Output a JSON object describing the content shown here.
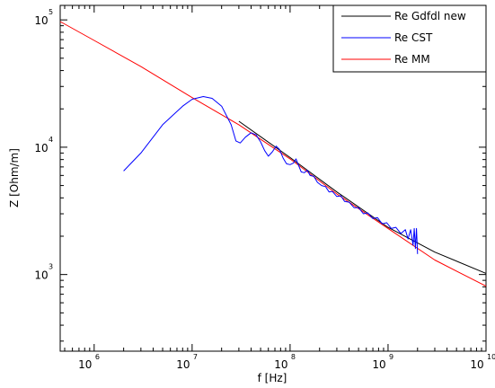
{
  "chart_data": {
    "type": "line",
    "xlabel": "f [Hz]",
    "ylabel": "Z [Ohm/m]",
    "x_scale": "log",
    "y_scale": "log",
    "xlim": [
      450000,
      10000000000
    ],
    "ylim": [
      250,
      130000
    ],
    "x_ticks": [
      {
        "value": 1000000,
        "base": "10",
        "exp": "6"
      },
      {
        "value": 10000000,
        "base": "10",
        "exp": "7"
      },
      {
        "value": 100000000,
        "base": "10",
        "exp": "8"
      },
      {
        "value": 1000000000,
        "base": "10",
        "exp": "9"
      },
      {
        "value": 10000000000,
        "base": "10",
        "exp": "10"
      }
    ],
    "y_ticks": [
      {
        "value": 1000,
        "base": "10",
        "exp": "3"
      },
      {
        "value": 10000,
        "base": "10",
        "exp": "4"
      },
      {
        "value": 100000,
        "base": "10",
        "exp": "5"
      }
    ],
    "grid": false,
    "legend_position": "top-right",
    "series": [
      {
        "name": "Re Gdfdl new",
        "color": "#000000",
        "points": [
          [
            30000000,
            16000
          ],
          [
            50000000,
            12100
          ],
          [
            100000000,
            8300
          ],
          [
            300000000,
            4450
          ],
          [
            1000000000,
            2350
          ],
          [
            3000000000,
            1500
          ],
          [
            10000000000,
            1020
          ]
        ]
      },
      {
        "name": "Re CST",
        "color": "#0000ff",
        "points": [
          [
            2000000,
            6500
          ],
          [
            3000000,
            9000
          ],
          [
            5000000,
            15000
          ],
          [
            8000000,
            21000
          ],
          [
            10000000,
            23800
          ],
          [
            13000000,
            25000
          ],
          [
            16000000,
            24200
          ],
          [
            20000000,
            21000
          ],
          [
            25000000,
            15000
          ],
          [
            28000000,
            11200
          ],
          [
            31000000,
            10800
          ],
          [
            35000000,
            12000
          ],
          [
            40000000,
            13000
          ],
          [
            45000000,
            12500
          ],
          [
            50000000,
            11000
          ],
          [
            55000000,
            9400
          ],
          [
            60000000,
            8500
          ],
          [
            66000000,
            9200
          ],
          [
            72000000,
            10200
          ],
          [
            78000000,
            9600
          ],
          [
            85000000,
            8200
          ],
          [
            92000000,
            7400
          ],
          [
            100000000,
            7300
          ],
          [
            108000000,
            7500
          ],
          [
            115000000,
            8100
          ],
          [
            122000000,
            7200
          ],
          [
            130000000,
            6400
          ],
          [
            140000000,
            6300
          ],
          [
            150000000,
            6600
          ],
          [
            160000000,
            6000
          ],
          [
            175000000,
            5900
          ],
          [
            190000000,
            5300
          ],
          [
            210000000,
            5000
          ],
          [
            230000000,
            4900
          ],
          [
            250000000,
            4450
          ],
          [
            270000000,
            4500
          ],
          [
            300000000,
            4100
          ],
          [
            330000000,
            4150
          ],
          [
            360000000,
            3750
          ],
          [
            400000000,
            3700
          ],
          [
            450000000,
            3350
          ],
          [
            500000000,
            3350
          ],
          [
            560000000,
            3000
          ],
          [
            620000000,
            3050
          ],
          [
            700000000,
            2750
          ],
          [
            780000000,
            2800
          ],
          [
            870000000,
            2500
          ],
          [
            970000000,
            2550
          ],
          [
            1080000000,
            2300
          ],
          [
            1200000000,
            2350
          ],
          [
            1350000000,
            2100
          ],
          [
            1500000000,
            2250
          ],
          [
            1600000000,
            1900
          ],
          [
            1700000000,
            2250
          ],
          [
            1800000000,
            1700
          ],
          [
            1850000000,
            2300
          ],
          [
            1900000000,
            1600
          ],
          [
            1950000000,
            2300
          ],
          [
            2000000000,
            1450
          ]
        ]
      },
      {
        "name": "Re MM",
        "color": "#ff0000",
        "points": [
          [
            450000,
            97000
          ],
          [
            1000000,
            69000
          ],
          [
            3000000,
            43000
          ],
          [
            10000000,
            24500
          ],
          [
            30000000,
            15000
          ],
          [
            100000000,
            8100
          ],
          [
            300000000,
            4300
          ],
          [
            1000000000,
            2300
          ],
          [
            3000000000,
            1300
          ],
          [
            10000000000,
            810
          ]
        ]
      }
    ]
  }
}
